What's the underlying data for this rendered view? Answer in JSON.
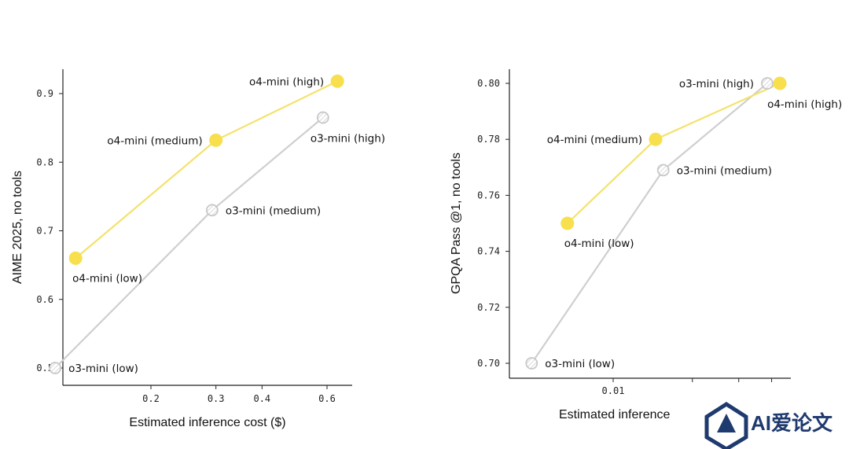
{
  "chart_data": [
    {
      "type": "line",
      "xlabel": "Estimated inference cost ($)",
      "ylabel": "AIME 2025, no tools",
      "xscale": "log",
      "xticks": [
        {
          "v": 0.2,
          "label": "0.2"
        },
        {
          "v": 0.3,
          "label": "0.3"
        },
        {
          "v": 0.4,
          "label": "0.4"
        },
        {
          "v": 0.6,
          "label": "0.6"
        }
      ],
      "yticks": [
        {
          "v": 0.5,
          "label": "0.5"
        },
        {
          "v": 0.6,
          "label": "0.6"
        },
        {
          "v": 0.7,
          "label": "0.7"
        },
        {
          "v": 0.8,
          "label": "0.8"
        },
        {
          "v": 0.9,
          "label": "0.9"
        }
      ],
      "series": [
        {
          "id": "o3",
          "points": [
            {
              "x": 0.11,
              "y": 0.5,
              "label": "o3-mini (low)",
              "anchor": "right"
            },
            {
              "x": 0.293,
              "y": 0.73,
              "label": "o3-mini (medium)",
              "anchor": "right"
            },
            {
              "x": 0.585,
              "y": 0.865,
              "label": "o3-mini (high)",
              "anchor": "below-right"
            }
          ]
        },
        {
          "id": "o4",
          "points": [
            {
              "x": 0.125,
              "y": 0.66,
              "label": "o4-mini (low)",
              "anchor": "below"
            },
            {
              "x": 0.3,
              "y": 0.832,
              "label": "o4-mini (medium)",
              "anchor": "left"
            },
            {
              "x": 0.64,
              "y": 0.918,
              "label": "o4-mini (high)",
              "anchor": "left"
            }
          ]
        }
      ]
    },
    {
      "type": "line",
      "xlabel": "Estimated inference",
      "ylabel": "GPQA Pass @1, no tools",
      "xscale": "log",
      "xticks": [
        {
          "v": 0.01,
          "label": "0.01"
        },
        {
          "v": 0.02,
          "label": ""
        },
        {
          "v": 0.03,
          "label": ""
        },
        {
          "v": 0.04,
          "label": ""
        }
      ],
      "yticks": [
        {
          "v": 0.7,
          "label": "0.70"
        },
        {
          "v": 0.72,
          "label": "0.72"
        },
        {
          "v": 0.74,
          "label": "0.74"
        },
        {
          "v": 0.76,
          "label": "0.76"
        },
        {
          "v": 0.78,
          "label": "0.78"
        },
        {
          "v": 0.8,
          "label": "0.80"
        }
      ],
      "series": [
        {
          "id": "o3",
          "points": [
            {
              "x": 0.0049,
              "y": 0.7,
              "label": "o3-mini (low)",
              "anchor": "right"
            },
            {
              "x": 0.0155,
              "y": 0.769,
              "label": "o3-mini (medium)",
              "anchor": "right"
            },
            {
              "x": 0.0385,
              "y": 0.8,
              "label": "o3-mini (high)",
              "anchor": "left"
            }
          ]
        },
        {
          "id": "o4",
          "points": [
            {
              "x": 0.0067,
              "y": 0.75,
              "label": "o4-mini (low)",
              "anchor": "below"
            },
            {
              "x": 0.0145,
              "y": 0.78,
              "label": "o4-mini (medium)",
              "anchor": "left"
            },
            {
              "x": 0.043,
              "y": 0.8,
              "label": "o4-mini (high)",
              "anchor": "below-right"
            }
          ]
        }
      ]
    }
  ],
  "watermark": {
    "text": "AI爱论文"
  },
  "colors": {
    "o4": "#f7df4e",
    "o3": "#c8c8c8"
  }
}
